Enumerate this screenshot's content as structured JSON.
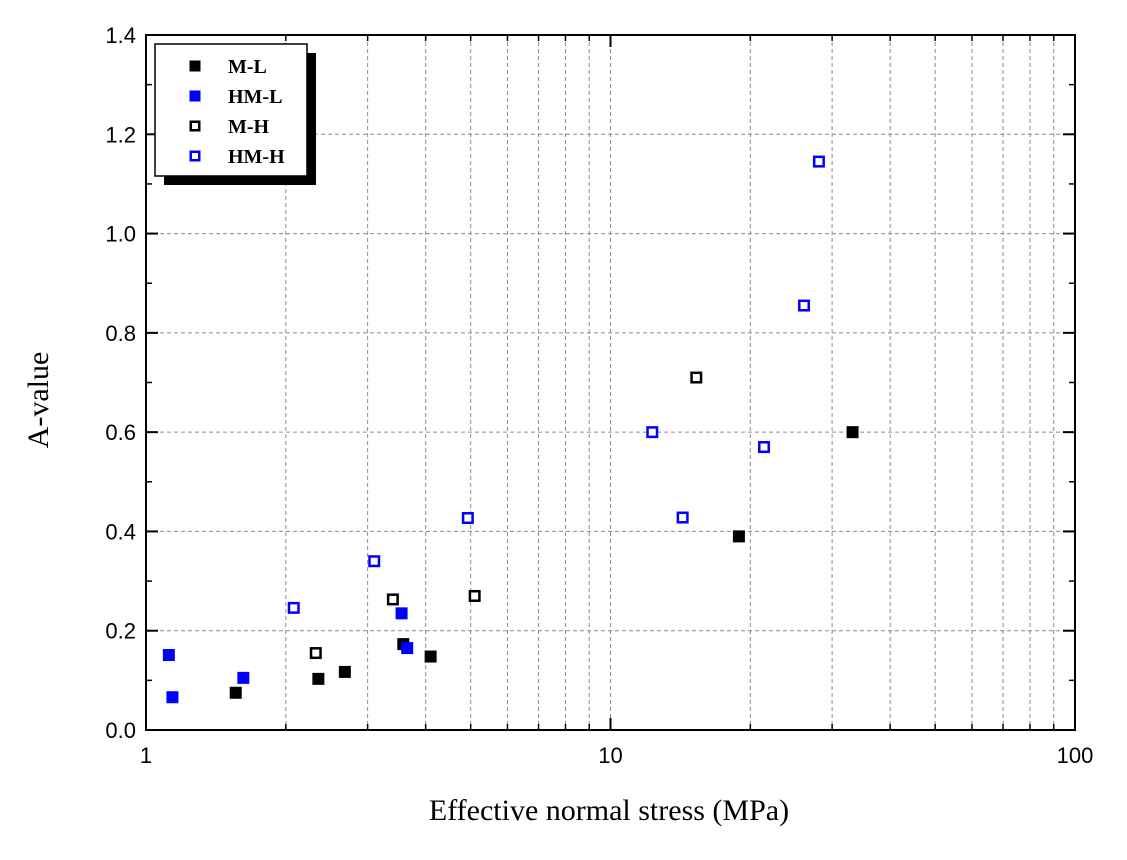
{
  "chart_data": {
    "type": "scatter",
    "title": "",
    "xlabel": "Effective normal stress (MPa)",
    "ylabel": "A-value",
    "xscale": "log",
    "xlim": [
      1,
      100
    ],
    "ylim": [
      0.0,
      1.4
    ],
    "x_ticks": [
      "1",
      "10",
      "100"
    ],
    "y_ticks": [
      "0.0",
      "0.2",
      "0.4",
      "0.6",
      "0.8",
      "1.0",
      "1.2",
      "1.4"
    ],
    "grid": true,
    "legend_position": "top-left",
    "series": [
      {
        "name": "M-L",
        "marker": "filled-square",
        "color": "#000000",
        "points": [
          {
            "x": 1.56,
            "y": 0.075
          },
          {
            "x": 2.35,
            "y": 0.103
          },
          {
            "x": 2.68,
            "y": 0.117
          },
          {
            "x": 3.58,
            "y": 0.173
          },
          {
            "x": 4.1,
            "y": 0.148
          },
          {
            "x": 18.9,
            "y": 0.39
          },
          {
            "x": 33.2,
            "y": 0.6
          }
        ]
      },
      {
        "name": "HM-L",
        "marker": "filled-square",
        "color": "#0000ff",
        "points": [
          {
            "x": 1.12,
            "y": 0.151
          },
          {
            "x": 1.14,
            "y": 0.066
          },
          {
            "x": 1.62,
            "y": 0.105
          },
          {
            "x": 3.55,
            "y": 0.235
          },
          {
            "x": 3.65,
            "y": 0.165
          }
        ]
      },
      {
        "name": "M-H",
        "marker": "open-square",
        "color": "#000000",
        "points": [
          {
            "x": 2.32,
            "y": 0.155
          },
          {
            "x": 3.4,
            "y": 0.263
          },
          {
            "x": 5.1,
            "y": 0.27
          },
          {
            "x": 15.3,
            "y": 0.71
          }
        ]
      },
      {
        "name": "HM-H",
        "marker": "open-square",
        "color": "#0000ff",
        "points": [
          {
            "x": 2.08,
            "y": 0.246
          },
          {
            "x": 3.1,
            "y": 0.34
          },
          {
            "x": 4.93,
            "y": 0.427
          },
          {
            "x": 12.3,
            "y": 0.6
          },
          {
            "x": 14.3,
            "y": 0.428
          },
          {
            "x": 21.4,
            "y": 0.57
          },
          {
            "x": 26.1,
            "y": 0.855
          },
          {
            "x": 28.1,
            "y": 1.145
          }
        ]
      }
    ]
  }
}
